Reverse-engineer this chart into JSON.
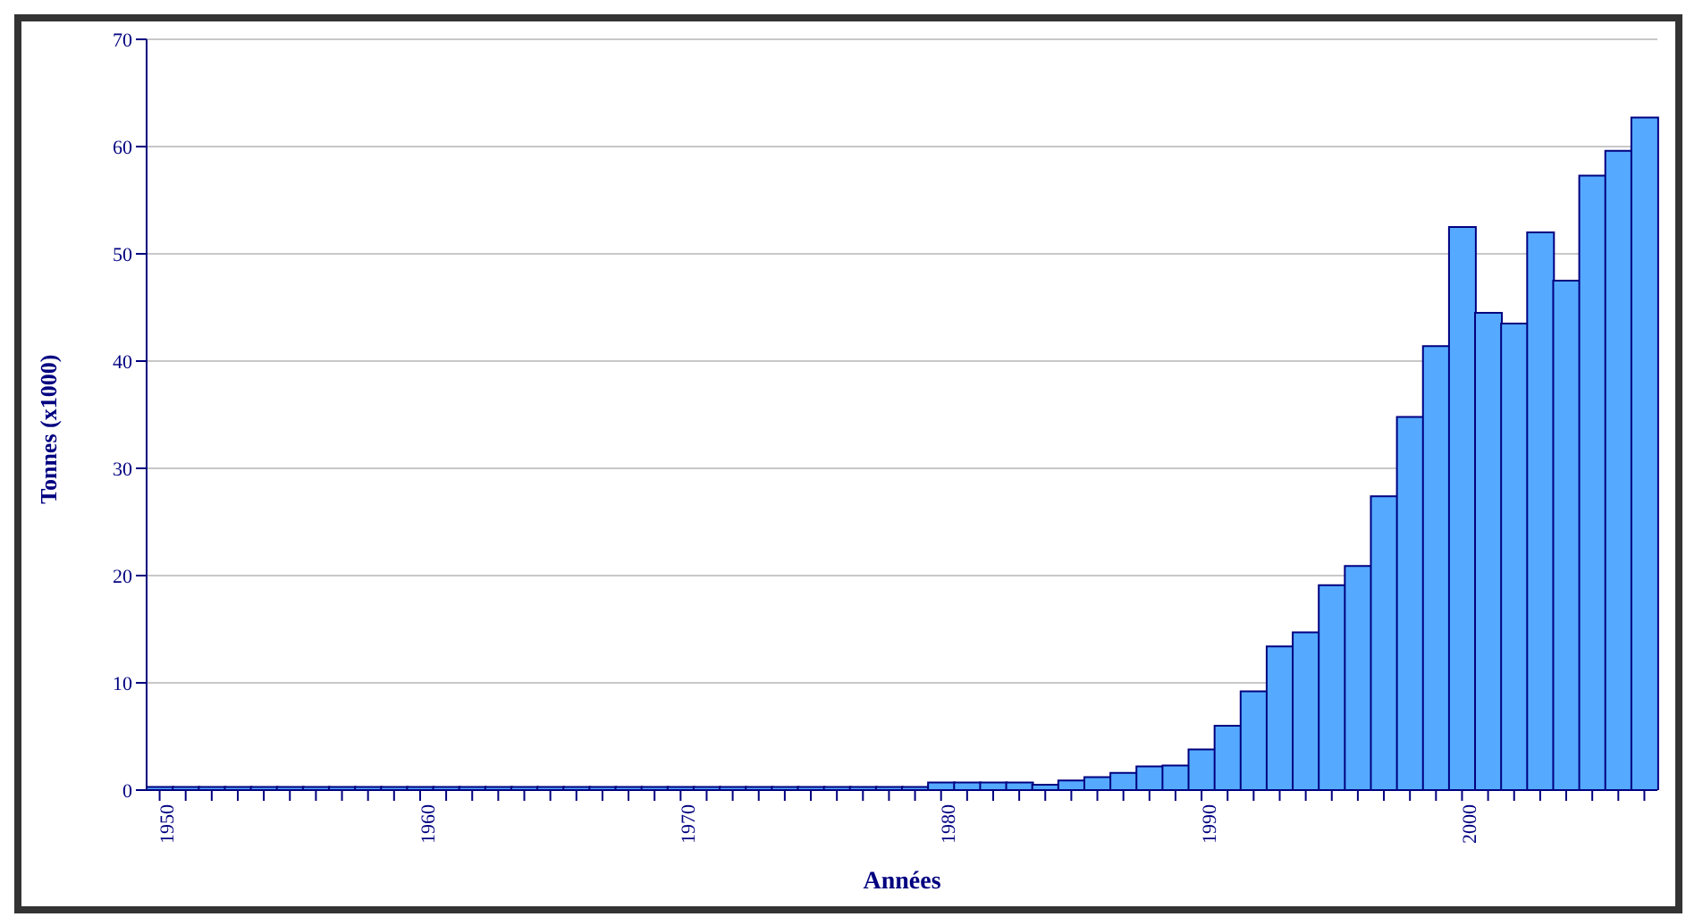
{
  "chart_data": {
    "type": "bar",
    "xlabel": "Années",
    "ylabel": "Tonnes (x1000)",
    "categories": [
      "1950",
      null,
      null,
      null,
      null,
      null,
      null,
      null,
      null,
      null,
      "1960",
      null,
      null,
      null,
      null,
      null,
      null,
      null,
      null,
      null,
      "1970",
      null,
      null,
      null,
      null,
      null,
      null,
      null,
      null,
      null,
      "1980",
      null,
      null,
      null,
      null,
      null,
      null,
      null,
      null,
      null,
      "1990",
      null,
      null,
      null,
      null,
      null,
      null,
      null,
      null,
      null,
      "2000",
      null,
      null,
      null,
      null,
      null,
      null,
      null
    ],
    "values": [
      0.3,
      0.3,
      0.3,
      0.3,
      0.3,
      0.3,
      0.3,
      0.3,
      0.3,
      0.3,
      0.3,
      0.3,
      0.3,
      0.3,
      0.3,
      0.3,
      0.3,
      0.3,
      0.3,
      0.3,
      0.3,
      0.3,
      0.3,
      0.3,
      0.3,
      0.3,
      0.3,
      0.3,
      0.3,
      0.3,
      0.7,
      0.7,
      0.7,
      0.7,
      0.5,
      0.9,
      1.2,
      1.6,
      2.2,
      2.3,
      3.8,
      6,
      9.2,
      13.4,
      14.7,
      19.1,
      20.9,
      27.4,
      34.8,
      41.4,
      52.5,
      44.5,
      43.5,
      52,
      47.5,
      57.3,
      59.6,
      62.7
    ],
    "color": "#55aaff",
    "ylim": [
      0,
      70
    ],
    "yticks": [
      0,
      10,
      20,
      30,
      40,
      50,
      60,
      70
    ],
    "grid": "y"
  }
}
